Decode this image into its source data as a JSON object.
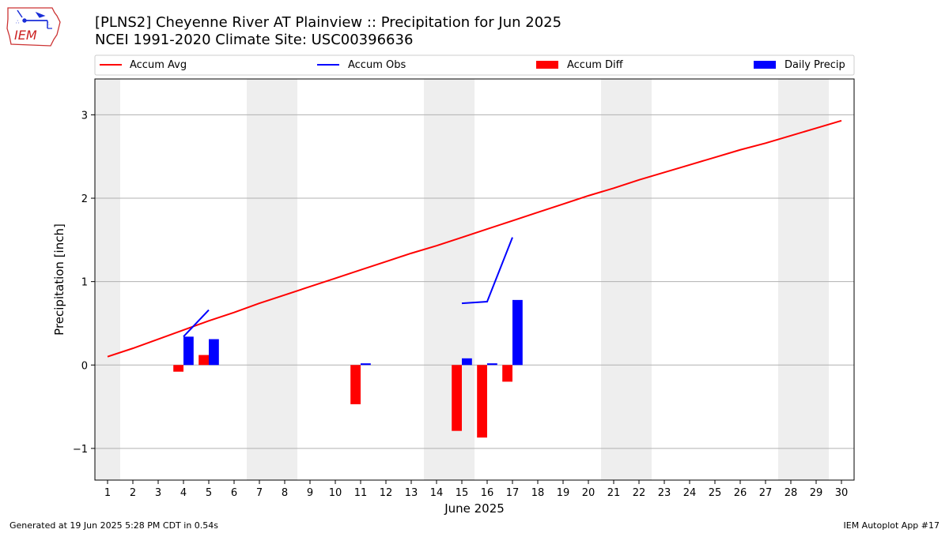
{
  "header": {
    "title_line1": "[PLNS2] Cheyenne River  AT Plainview :: Precipitation for Jun 2025",
    "title_line2": "NCEI 1991-2020 Climate Site: USC00396636",
    "logo_text": "IEM"
  },
  "footer": {
    "generated": "Generated at 19 Jun 2025 5:28 PM CDT in 0.54s",
    "app": "IEM Autoplot App #17"
  },
  "colors": {
    "accum_avg": "#ff0000",
    "accum_obs": "#0000ff",
    "accum_diff": "#ff0000",
    "daily_precip": "#0000ff",
    "weekend_band": "#eeeeee",
    "grid": "#b0b0b0"
  },
  "chart_data": {
    "type": "bar",
    "title": "[PLNS2] Cheyenne River  AT Plainview :: Precipitation for Jun 2025",
    "xlabel": "June 2025",
    "ylabel": "Precipitation [inch]",
    "xlim": [
      0.5,
      30.5
    ],
    "ylim": [
      -1.38,
      3.43
    ],
    "yticks": [
      -1,
      0,
      1,
      2,
      3
    ],
    "ytick_labels": [
      "−1",
      "0",
      "1",
      "2",
      "3"
    ],
    "days": [
      1,
      2,
      3,
      4,
      5,
      6,
      7,
      8,
      9,
      10,
      11,
      12,
      13,
      14,
      15,
      16,
      17,
      18,
      19,
      20,
      21,
      22,
      23,
      24,
      25,
      26,
      27,
      28,
      29,
      30
    ],
    "grid": "horizontal",
    "legend_position": "top",
    "legend": [
      "Accum Avg",
      "Accum Obs",
      "Accum Diff",
      "Daily Precip"
    ],
    "weekend_bands": [
      [
        0.5,
        1.5
      ],
      [
        6.5,
        8.5
      ],
      [
        13.5,
        15.5
      ],
      [
        20.5,
        22.5
      ],
      [
        27.5,
        29.5
      ]
    ],
    "accum_avg": {
      "name": "Accum Avg",
      "x": [
        1,
        2,
        3,
        4,
        5,
        6,
        7,
        8,
        9,
        10,
        11,
        12,
        13,
        14,
        15,
        16,
        17,
        18,
        19,
        20,
        21,
        22,
        23,
        24,
        25,
        26,
        27,
        28,
        29,
        30
      ],
      "values": [
        0.1,
        0.2,
        0.31,
        0.42,
        0.53,
        0.63,
        0.74,
        0.84,
        0.94,
        1.04,
        1.14,
        1.24,
        1.34,
        1.43,
        1.53,
        1.63,
        1.73,
        1.83,
        1.93,
        2.03,
        2.12,
        2.22,
        2.31,
        2.4,
        2.49,
        2.58,
        2.66,
        2.75,
        2.84,
        2.93
      ]
    },
    "accum_obs": {
      "name": "Accum Obs",
      "segments": [
        {
          "x": [
            4,
            5
          ],
          "values": [
            0.34,
            0.66
          ]
        },
        {
          "x": [
            15,
            16,
            17
          ],
          "values": [
            0.74,
            0.76,
            1.53
          ]
        }
      ]
    },
    "accum_diff": {
      "name": "Accum Diff",
      "x": [
        4,
        5,
        11,
        15,
        16,
        17
      ],
      "values": [
        -0.08,
        0.12,
        -0.47,
        -0.79,
        -0.87,
        -0.2
      ]
    },
    "daily_precip": {
      "name": "Daily Precip",
      "x": [
        4,
        5,
        11,
        15,
        16,
        17
      ],
      "values": [
        0.34,
        0.31,
        0.02,
        0.08,
        0.02,
        0.78
      ]
    }
  }
}
